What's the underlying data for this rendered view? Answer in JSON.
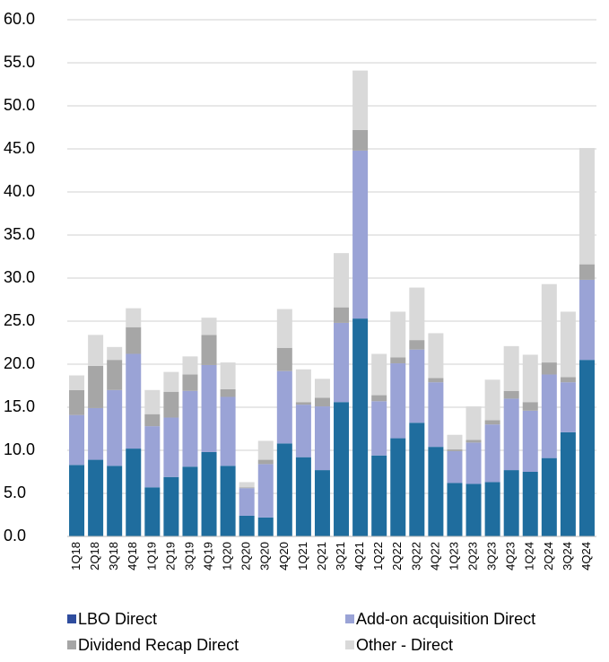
{
  "chart_data": {
    "type": "stacked_bar",
    "categories": [
      "1Q18",
      "2Q18",
      "3Q18",
      "4Q18",
      "1Q19",
      "2Q19",
      "3Q19",
      "4Q19",
      "1Q20",
      "2Q20",
      "3Q20",
      "4Q20",
      "1Q21",
      "2Q21",
      "3Q21",
      "4Q21",
      "1Q22",
      "2Q22",
      "3Q22",
      "4Q22",
      "1Q23",
      "2Q23",
      "3Q23",
      "4Q23",
      "1Q24",
      "2Q24",
      "3Q24",
      "4Q24"
    ],
    "series": [
      {
        "name": "LBO Direct",
        "color": "#1f6d9e",
        "legend_color": "#2f4d9e",
        "values": [
          8.3,
          8.9,
          8.2,
          10.2,
          5.7,
          6.9,
          8.1,
          9.8,
          8.2,
          2.4,
          2.2,
          10.8,
          9.2,
          7.7,
          15.6,
          25.3,
          9.4,
          11.4,
          13.2,
          10.4,
          6.2,
          6.1,
          6.3,
          7.7,
          7.5,
          9.1,
          12.1,
          20.5
        ]
      },
      {
        "name": "Add-on acquisition Direct",
        "color": "#9aa3d6",
        "values": [
          5.8,
          6.0,
          8.8,
          11.0,
          7.1,
          6.9,
          8.8,
          10.1,
          8.0,
          3.2,
          6.2,
          8.4,
          6.1,
          7.4,
          9.2,
          19.5,
          6.3,
          8.7,
          8.5,
          7.5,
          3.7,
          4.8,
          6.7,
          8.3,
          7.1,
          9.7,
          5.8,
          9.3
        ]
      },
      {
        "name": "Dividend Recap Direct",
        "color": "#a6a6a6",
        "values": [
          2.9,
          4.9,
          3.5,
          3.1,
          1.4,
          3.0,
          1.9,
          3.5,
          0.9,
          0.1,
          0.5,
          2.7,
          0.3,
          1.0,
          1.8,
          2.4,
          0.7,
          0.7,
          1.1,
          0.5,
          0.2,
          0.3,
          0.5,
          0.9,
          1.0,
          1.4,
          0.6,
          1.8
        ]
      },
      {
        "name": "Other - Direct",
        "color": "#d9d9d9",
        "values": [
          1.7,
          3.6,
          1.5,
          2.2,
          2.8,
          2.3,
          2.1,
          2.0,
          3.1,
          0.6,
          2.2,
          4.5,
          3.8,
          2.2,
          6.3,
          6.9,
          4.8,
          5.3,
          6.1,
          5.2,
          1.7,
          3.9,
          4.7,
          5.2,
          5.5,
          9.1,
          7.6,
          13.5
        ]
      }
    ],
    "ylim": [
      0,
      60
    ],
    "yticks": [
      {
        "value": 0,
        "label": "0.0"
      },
      {
        "value": 5,
        "label": "5.0"
      },
      {
        "value": 10,
        "label": "10.0"
      },
      {
        "value": 15,
        "label": "15.0"
      },
      {
        "value": 20,
        "label": "20.0"
      },
      {
        "value": 25,
        "label": "25.0"
      },
      {
        "value": 30,
        "label": "30.0"
      },
      {
        "value": 35,
        "label": "35.0"
      },
      {
        "value": 40,
        "label": "40.0"
      },
      {
        "value": 45,
        "label": "45.0"
      },
      {
        "value": 50,
        "label": "50.0"
      },
      {
        "value": 55,
        "label": "55.0"
      },
      {
        "value": 60,
        "label": "60.0"
      }
    ],
    "grid": true,
    "legend": "bottom"
  }
}
